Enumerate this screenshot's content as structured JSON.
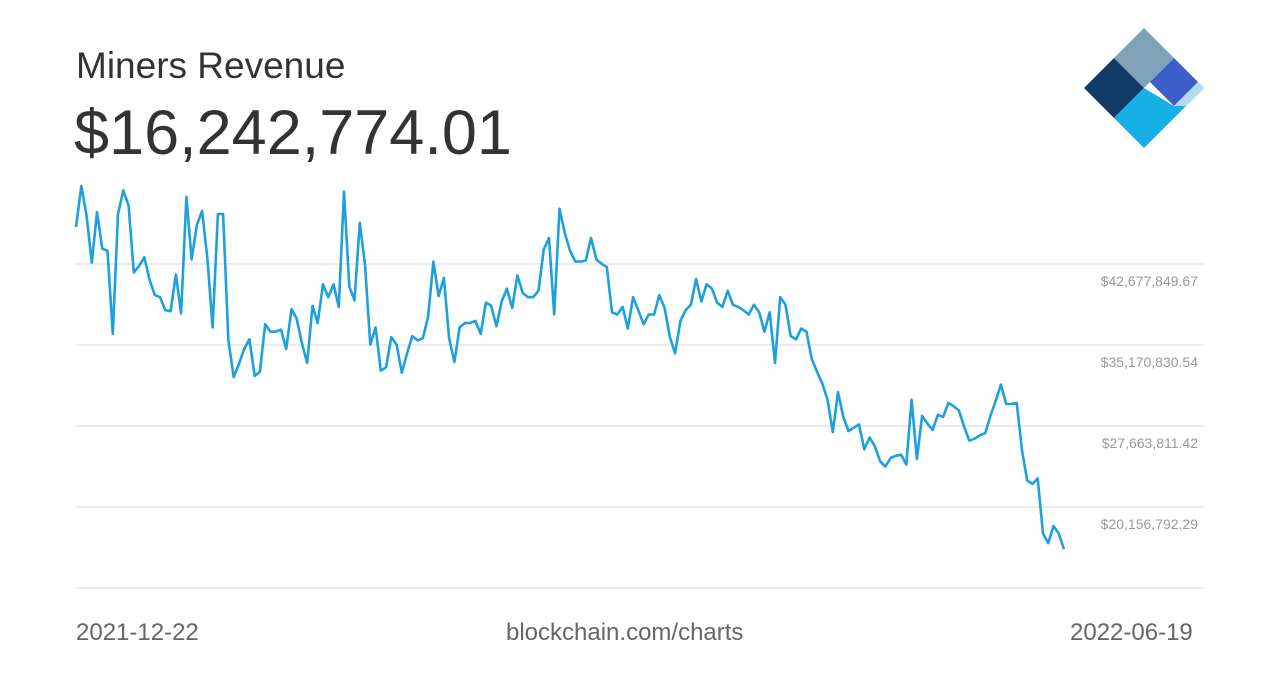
{
  "header": {
    "title": "Miners Revenue",
    "current_value": "$16,242,774.01"
  },
  "footer": {
    "start_date": "2021-12-22",
    "source": "blockchain.com/charts",
    "end_date": "2022-06-19"
  },
  "logo": {
    "icon": "blockchain-diamond-logo-icon",
    "colors": [
      "#7fa3b8",
      "#123a66",
      "#3d5ec8",
      "#17b0e6",
      "#b3d9ec"
    ]
  },
  "chart_data": {
    "type": "line",
    "title": "Miners Revenue",
    "xlabel": "",
    "ylabel": "",
    "x_start": "2021-12-22",
    "x_end": "2022-06-19",
    "y_ticks": [
      20156792.29,
      27663811.42,
      35170830.54,
      42677849.67
    ],
    "y_tick_labels": [
      "$20,156,792.29",
      "$27,663,811.42",
      "$35,170,830.54",
      "$42,677,849.67"
    ],
    "grid": true,
    "line_color": "#1ea0dc",
    "grid_color": "#d9d9d9",
    "series": [
      {
        "values": [
          46100000,
          49900000,
          47200000,
          42800000,
          47500000,
          44100000,
          43900000,
          36200000,
          47300000,
          49500000,
          48100000,
          41900000,
          42500000,
          43300000,
          41200000,
          39800000,
          39600000,
          38400000,
          38300000,
          41700000,
          38100000,
          48900000,
          43100000,
          46300000,
          47600000,
          43200000,
          36800000,
          47300000,
          47300000,
          35600000,
          32200000,
          33400000,
          34800000,
          35700000,
          32300000,
          32700000,
          37100000,
          36400000,
          36400000,
          36600000,
          34800000,
          38500000,
          37600000,
          35300000,
          33500000,
          38800000,
          37200000,
          40800000,
          39600000,
          40800000,
          38700000,
          49400000,
          40600000,
          39300000,
          46500000,
          42600000,
          35200000,
          36800000,
          32800000,
          33100000,
          35900000,
          35200000,
          32600000,
          34400000,
          36000000,
          35600000,
          35800000,
          37800000,
          42900000,
          39700000,
          41400000,
          35800000,
          33600000,
          36800000,
          37200000,
          37200000,
          37400000,
          36200000,
          39100000,
          38800000,
          36900000,
          39200000,
          40400000,
          38600000,
          41600000,
          40000000,
          39600000,
          39600000,
          40200000,
          44000000,
          45100000,
          38000000,
          47800000,
          45600000,
          43900000,
          42900000,
          42900000,
          43000000,
          45100000,
          43100000,
          42700000,
          42400000,
          38200000,
          38000000,
          38700000,
          36700000,
          39600000,
          38400000,
          37100000,
          38000000,
          38000000,
          39800000,
          38600000,
          35900000,
          34400000,
          37400000,
          38400000,
          38900000,
          41300000,
          39200000,
          40800000,
          40400000,
          39100000,
          38700000,
          40200000,
          38900000,
          38700000,
          38400000,
          38000000,
          38900000,
          38200000,
          36400000,
          38200000,
          33500000,
          39600000,
          38900000,
          36000000,
          35700000,
          36700000,
          36400000,
          33900000,
          32700000,
          31600000,
          30100000,
          27100000,
          30800000,
          28500000,
          27200000,
          27500000,
          27800000,
          25500000,
          26600000,
          25800000,
          24400000,
          23900000,
          24700000,
          24900000,
          25000000,
          24100000,
          30100000,
          24600000,
          28600000,
          27900000,
          27300000,
          28700000,
          28500000,
          29800000,
          29500000,
          29100000,
          27600000,
          26300000,
          26500000,
          26800000,
          27000000,
          28600000,
          30000000,
          31500000,
          29700000,
          29700000,
          29800000,
          25400000,
          22600000,
          22300000,
          22800000,
          17700000,
          16800000,
          18400000,
          17700000,
          16242774
        ]
      }
    ]
  }
}
